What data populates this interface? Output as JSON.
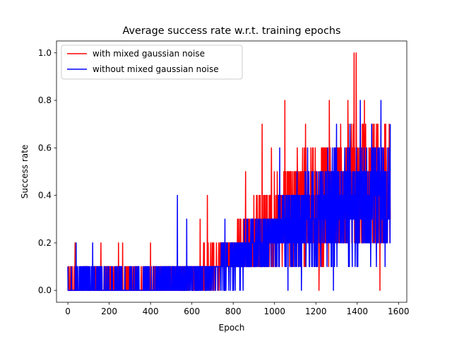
{
  "chart_data": {
    "type": "line",
    "title": "Average success rate w.r.t. training epochs",
    "xlabel": "Epoch",
    "ylabel": "Success rate",
    "xlim": [
      -55,
      1640
    ],
    "ylim": [
      -0.05,
      1.05
    ],
    "xticks": [
      0,
      200,
      400,
      600,
      800,
      1000,
      1200,
      1400,
      1600
    ],
    "xtick_labels": [
      "0",
      "200",
      "400",
      "600",
      "800",
      "1000",
      "1200",
      "1400",
      "1600"
    ],
    "yticks": [
      0.0,
      0.2,
      0.4,
      0.6,
      0.8,
      1.0
    ],
    "ytick_labels": [
      "0.0",
      "0.2",
      "0.4",
      "0.6",
      "0.8",
      "1.0"
    ],
    "grid": false,
    "legend_position": "top-left",
    "series": [
      {
        "name": "with mixed gaussian noise",
        "color": "#ff0000",
        "anchors": [
          [
            0,
            0.02
          ],
          [
            100,
            0.03
          ],
          [
            200,
            0.03
          ],
          [
            300,
            0.03
          ],
          [
            400,
            0.03
          ],
          [
            500,
            0.05
          ],
          [
            600,
            0.08
          ],
          [
            700,
            0.1
          ],
          [
            800,
            0.15
          ],
          [
            900,
            0.22
          ],
          [
            1000,
            0.28
          ],
          [
            1100,
            0.34
          ],
          [
            1200,
            0.38
          ],
          [
            1300,
            0.4
          ],
          [
            1400,
            0.42
          ],
          [
            1500,
            0.42
          ],
          [
            1560,
            0.42
          ]
        ],
        "peaks": [
          [
            35,
            0.2
          ],
          [
            160,
            0.2
          ],
          [
            245,
            0.2
          ],
          [
            265,
            0.2
          ],
          [
            400,
            0.2
          ],
          [
            640,
            0.3
          ],
          [
            675,
            0.4
          ],
          [
            860,
            0.5
          ],
          [
            940,
            0.7
          ],
          [
            985,
            0.6
          ],
          [
            1050,
            0.8
          ],
          [
            1110,
            0.6
          ],
          [
            1150,
            0.7
          ],
          [
            1230,
            0.6
          ],
          [
            1265,
            0.8
          ],
          [
            1320,
            0.7
          ],
          [
            1355,
            0.8
          ],
          [
            1385,
            1.0
          ],
          [
            1395,
            1.0
          ],
          [
            1435,
            0.8
          ],
          [
            1500,
            0.7
          ],
          [
            1555,
            0.7
          ]
        ],
        "troughs": [
          [
            1215,
            0.0
          ],
          [
            1510,
            0.0
          ],
          [
            1530,
            0.2
          ]
        ]
      },
      {
        "name": "without mixed gaussian noise",
        "color": "#0000ff",
        "anchors": [
          [
            0,
            0.02
          ],
          [
            100,
            0.03
          ],
          [
            200,
            0.03
          ],
          [
            300,
            0.03
          ],
          [
            400,
            0.03
          ],
          [
            500,
            0.04
          ],
          [
            600,
            0.06
          ],
          [
            700,
            0.08
          ],
          [
            800,
            0.12
          ],
          [
            900,
            0.18
          ],
          [
            1000,
            0.22
          ],
          [
            1100,
            0.28
          ],
          [
            1200,
            0.32
          ],
          [
            1300,
            0.35
          ],
          [
            1400,
            0.37
          ],
          [
            1500,
            0.38
          ],
          [
            1560,
            0.38
          ]
        ],
        "peaks": [
          [
            40,
            0.2
          ],
          [
            120,
            0.2
          ],
          [
            530,
            0.4
          ],
          [
            575,
            0.3
          ],
          [
            760,
            0.3
          ],
          [
            1025,
            0.6
          ],
          [
            1160,
            0.6
          ],
          [
            1300,
            0.7
          ],
          [
            1365,
            0.7
          ],
          [
            1415,
            0.8
          ],
          [
            1470,
            0.7
          ],
          [
            1515,
            0.8
          ],
          [
            1560,
            0.7
          ]
        ],
        "troughs": [
          [
            1065,
            0.0
          ],
          [
            1130,
            0.0
          ],
          [
            1285,
            0.0
          ],
          [
            1465,
            0.1
          ]
        ]
      }
    ]
  }
}
